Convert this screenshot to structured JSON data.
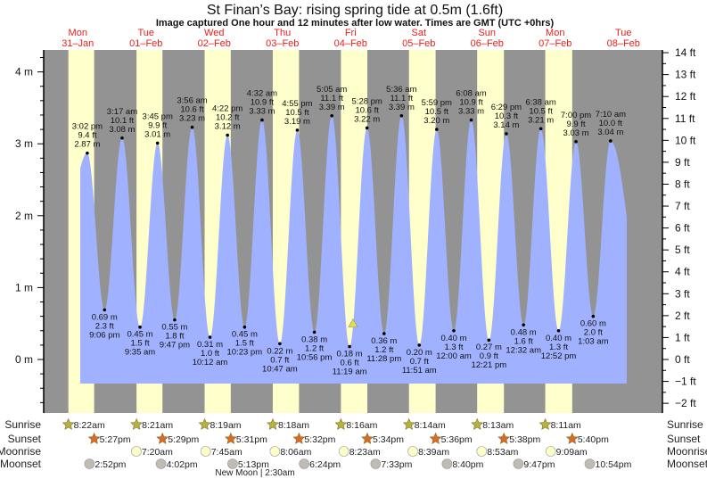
{
  "title": "St Finan’s Bay: rising  spring tide at 0.5m (1.6ft)",
  "subtitle": "Image captured One hour and 12 minutes after low water. Times are GMT (UTC +0hrs)",
  "colors": {
    "day": "#ffffcc",
    "night": "#939393",
    "water": "#a0b2ff",
    "day_label": "#e8201b",
    "sunrise": "#b3b340",
    "sunset": "#d96a28",
    "moonrise": "#ffffc8",
    "moonset": "#c0bcb4",
    "marker": "#e6e040"
  },
  "chart_data": {
    "type": "area",
    "title": "St Finan’s Bay: rising  spring tide at 0.5m (1.6ft)",
    "ylabel_left_unit": "m",
    "ylabel_right_unit": "ft",
    "ylim_m": [
      -0.6,
      4.3
    ],
    "yticks_m": [
      "4 m",
      "3 m",
      "2 m",
      "1 m",
      "0 m"
    ],
    "yticks_ft": [
      "14 ft",
      "13 ft",
      "12 ft",
      "11 ft",
      "10 ft",
      "9 ft",
      "8 ft",
      "7 ft",
      "6 ft",
      "5 ft",
      "4 ft",
      "3 ft",
      "2 ft",
      "1 ft",
      "0 ft",
      "−1 ft",
      "−2 ft"
    ],
    "days": [
      {
        "name": "Mon",
        "date": "31–Jan"
      },
      {
        "name": "Tue",
        "date": "01–Feb"
      },
      {
        "name": "Wed",
        "date": "02–Feb"
      },
      {
        "name": "Thu",
        "date": "03–Feb"
      },
      {
        "name": "Fri",
        "date": "04–Feb"
      },
      {
        "name": "Sat",
        "date": "05–Feb"
      },
      {
        "name": "Sun",
        "date": "06–Feb"
      },
      {
        "name": "Mon",
        "date": "07–Feb"
      },
      {
        "name": "Tue",
        "date": "08–Feb"
      }
    ],
    "tides": [
      {
        "day": 0,
        "time": "3:02 pm",
        "h": 15.03,
        "m": 2.87,
        "ft": "9.4 ft",
        "type": "high"
      },
      {
        "day": 0,
        "time": "9:06 pm",
        "h": 21.1,
        "m": 0.69,
        "ft": "2.3 ft",
        "type": "low"
      },
      {
        "day": 1,
        "time": "3:17 am",
        "h": 3.28,
        "m": 3.08,
        "ft": "10.1 ft",
        "type": "high"
      },
      {
        "day": 1,
        "time": "9:35 am",
        "h": 9.58,
        "m": 0.45,
        "ft": "1.5 ft",
        "type": "low"
      },
      {
        "day": 1,
        "time": "3:45 pm",
        "h": 15.75,
        "m": 3.01,
        "ft": "9.9 ft",
        "type": "high"
      },
      {
        "day": 1,
        "time": "9:47 pm",
        "h": 21.78,
        "m": 0.55,
        "ft": "1.8 ft",
        "type": "low"
      },
      {
        "day": 2,
        "time": "3:56 am",
        "h": 3.93,
        "m": 3.23,
        "ft": "10.6 ft",
        "type": "high"
      },
      {
        "day": 2,
        "time": "10:12 am",
        "h": 10.2,
        "m": 0.31,
        "ft": "1.0 ft",
        "type": "low"
      },
      {
        "day": 2,
        "time": "4:22 pm",
        "h": 16.37,
        "m": 3.12,
        "ft": "10.2 ft",
        "type": "high"
      },
      {
        "day": 2,
        "time": "10:23 pm",
        "h": 22.38,
        "m": 0.45,
        "ft": "1.5 ft",
        "type": "low"
      },
      {
        "day": 3,
        "time": "4:32 am",
        "h": 4.53,
        "m": 3.33,
        "ft": "10.9 ft",
        "type": "high"
      },
      {
        "day": 3,
        "time": "10:47 am",
        "h": 10.78,
        "m": 0.22,
        "ft": "0.7 ft",
        "type": "low"
      },
      {
        "day": 3,
        "time": "4:55 pm",
        "h": 16.92,
        "m": 3.19,
        "ft": "10.5 ft",
        "type": "high"
      },
      {
        "day": 3,
        "time": "10:56 pm",
        "h": 22.93,
        "m": 0.38,
        "ft": "1.2 ft",
        "type": "low"
      },
      {
        "day": 4,
        "time": "5:05 am",
        "h": 5.08,
        "m": 3.39,
        "ft": "11.1 ft",
        "type": "high"
      },
      {
        "day": 4,
        "time": "11:19 am",
        "h": 11.32,
        "m": 0.18,
        "ft": "0.6 ft",
        "type": "low"
      },
      {
        "day": 4,
        "time": "5:28 pm",
        "h": 17.47,
        "m": 3.22,
        "ft": "10.6 ft",
        "type": "high"
      },
      {
        "day": 4,
        "time": "11:28 pm",
        "h": 23.47,
        "m": 0.36,
        "ft": "1.2 ft",
        "type": "low"
      },
      {
        "day": 5,
        "time": "5:36 am",
        "h": 5.6,
        "m": 3.39,
        "ft": "11.1 ft",
        "type": "high"
      },
      {
        "day": 5,
        "time": "11:51 am",
        "h": 11.85,
        "m": 0.2,
        "ft": "0.7 ft",
        "type": "low"
      },
      {
        "day": 5,
        "time": "5:59 pm",
        "h": 17.98,
        "m": 3.2,
        "ft": "10.5 ft",
        "type": "high"
      },
      {
        "day": 6,
        "time": "12:00 am",
        "h": 0.0,
        "m": 0.4,
        "ft": "1.3 ft",
        "type": "low"
      },
      {
        "day": 6,
        "time": "6:08 am",
        "h": 6.13,
        "m": 3.33,
        "ft": "10.9 ft",
        "type": "high"
      },
      {
        "day": 6,
        "time": "12:21 pm",
        "h": 12.35,
        "m": 0.27,
        "ft": "0.9 ft",
        "type": "low"
      },
      {
        "day": 6,
        "time": "6:29 pm",
        "h": 18.48,
        "m": 3.14,
        "ft": "10.3 ft",
        "type": "high"
      },
      {
        "day": 7,
        "time": "12:32 am",
        "h": 0.53,
        "m": 0.48,
        "ft": "1.6 ft",
        "type": "low"
      },
      {
        "day": 7,
        "time": "6:38 am",
        "h": 6.63,
        "m": 3.21,
        "ft": "10.5 ft",
        "type": "high"
      },
      {
        "day": 7,
        "time": "12:52 pm",
        "h": 12.87,
        "m": 0.4,
        "ft": "1.3 ft",
        "type": "low"
      },
      {
        "day": 7,
        "time": "7:00 pm",
        "h": 19.0,
        "m": 3.03,
        "ft": "9.9 ft",
        "type": "high"
      },
      {
        "day": 8,
        "time": "1:03 am",
        "h": 1.05,
        "m": 0.6,
        "ft": "2.0 ft",
        "type": "low"
      },
      {
        "day": 8,
        "time": "7:10 am",
        "h": 7.17,
        "m": 3.04,
        "ft": "10.0 ft",
        "type": "high"
      }
    ],
    "current": {
      "day": 4,
      "h": 12.52,
      "m": 0.5,
      "state": "rising"
    },
    "rows": {
      "sunrise": "Sunrise",
      "sunset": "Sunset",
      "moonrise": "Moonrise",
      "moonset": "Moonset"
    },
    "sunrise": [
      {
        "day": 0,
        "h": 8.37,
        "t": "8:22am"
      },
      {
        "day": 1,
        "h": 8.35,
        "t": "8:21am"
      },
      {
        "day": 2,
        "h": 8.32,
        "t": "8:19am"
      },
      {
        "day": 3,
        "h": 8.3,
        "t": "8:18am"
      },
      {
        "day": 4,
        "h": 8.27,
        "t": "8:16am"
      },
      {
        "day": 5,
        "h": 8.23,
        "t": "8:14am"
      },
      {
        "day": 6,
        "h": 8.22,
        "t": "8:13am"
      },
      {
        "day": 7,
        "h": 8.18,
        "t": "8:11am"
      }
    ],
    "sunset": [
      {
        "day": 0,
        "h": 17.45,
        "t": "5:27pm"
      },
      {
        "day": 1,
        "h": 17.48,
        "t": "5:29pm"
      },
      {
        "day": 2,
        "h": 17.52,
        "t": "5:31pm"
      },
      {
        "day": 3,
        "h": 17.53,
        "t": "5:32pm"
      },
      {
        "day": 4,
        "h": 17.57,
        "t": "5:34pm"
      },
      {
        "day": 5,
        "h": 17.6,
        "t": "5:36pm"
      },
      {
        "day": 6,
        "h": 17.63,
        "t": "5:38pm"
      },
      {
        "day": 7,
        "h": 17.67,
        "t": "5:40pm"
      }
    ],
    "moonrise": [
      {
        "day": 1,
        "h": 7.33,
        "t": "7:20am"
      },
      {
        "day": 2,
        "h": 7.75,
        "t": "7:45am"
      },
      {
        "day": 3,
        "h": 8.1,
        "t": "8:06am"
      },
      {
        "day": 4,
        "h": 8.38,
        "t": "8:23am"
      },
      {
        "day": 5,
        "h": 8.65,
        "t": "8:39am"
      },
      {
        "day": 6,
        "h": 8.88,
        "t": "8:53am"
      },
      {
        "day": 7,
        "h": 9.15,
        "t": "9:09am"
      }
    ],
    "moonset": [
      {
        "day": 0,
        "h": 14.87,
        "t": "2:52pm"
      },
      {
        "day": 1,
        "h": 16.03,
        "t": "4:02pm"
      },
      {
        "day": 2,
        "h": 17.22,
        "t": "5:13pm"
      },
      {
        "day": 3,
        "h": 18.4,
        "t": "6:24pm"
      },
      {
        "day": 4,
        "h": 19.55,
        "t": "7:33pm"
      },
      {
        "day": 5,
        "h": 20.67,
        "t": "8:40pm"
      },
      {
        "day": 6,
        "h": 21.78,
        "t": "9:47pm"
      },
      {
        "day": 7,
        "h": 22.9,
        "t": "10:54pm"
      }
    ],
    "moon_phase": "New Moon | 2:30am"
  }
}
